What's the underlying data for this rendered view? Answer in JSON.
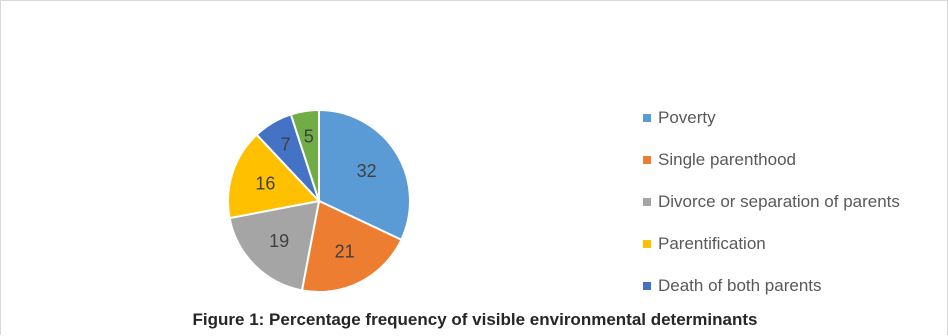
{
  "chart_data": {
    "type": "pie",
    "categories": [
      "Poverty",
      "Single parenthood",
      "Divorce or separation of parents",
      "Parentification",
      "Death of both parents",
      ""
    ],
    "values": [
      32,
      21,
      19,
      16,
      7,
      5
    ],
    "colors": [
      "#5b9bd5",
      "#ed7d31",
      "#a5a5a5",
      "#ffc000",
      "#4472c4",
      "#70ad47"
    ],
    "legend_position": "right",
    "data_labels": true
  },
  "legend": {
    "items": [
      "Poverty",
      "Single parenthood",
      "Divorce or separation of parents",
      "Parentification",
      "Death of both parents"
    ]
  },
  "caption": "Figure 1: Percentage frequency of visible environmental determinants"
}
